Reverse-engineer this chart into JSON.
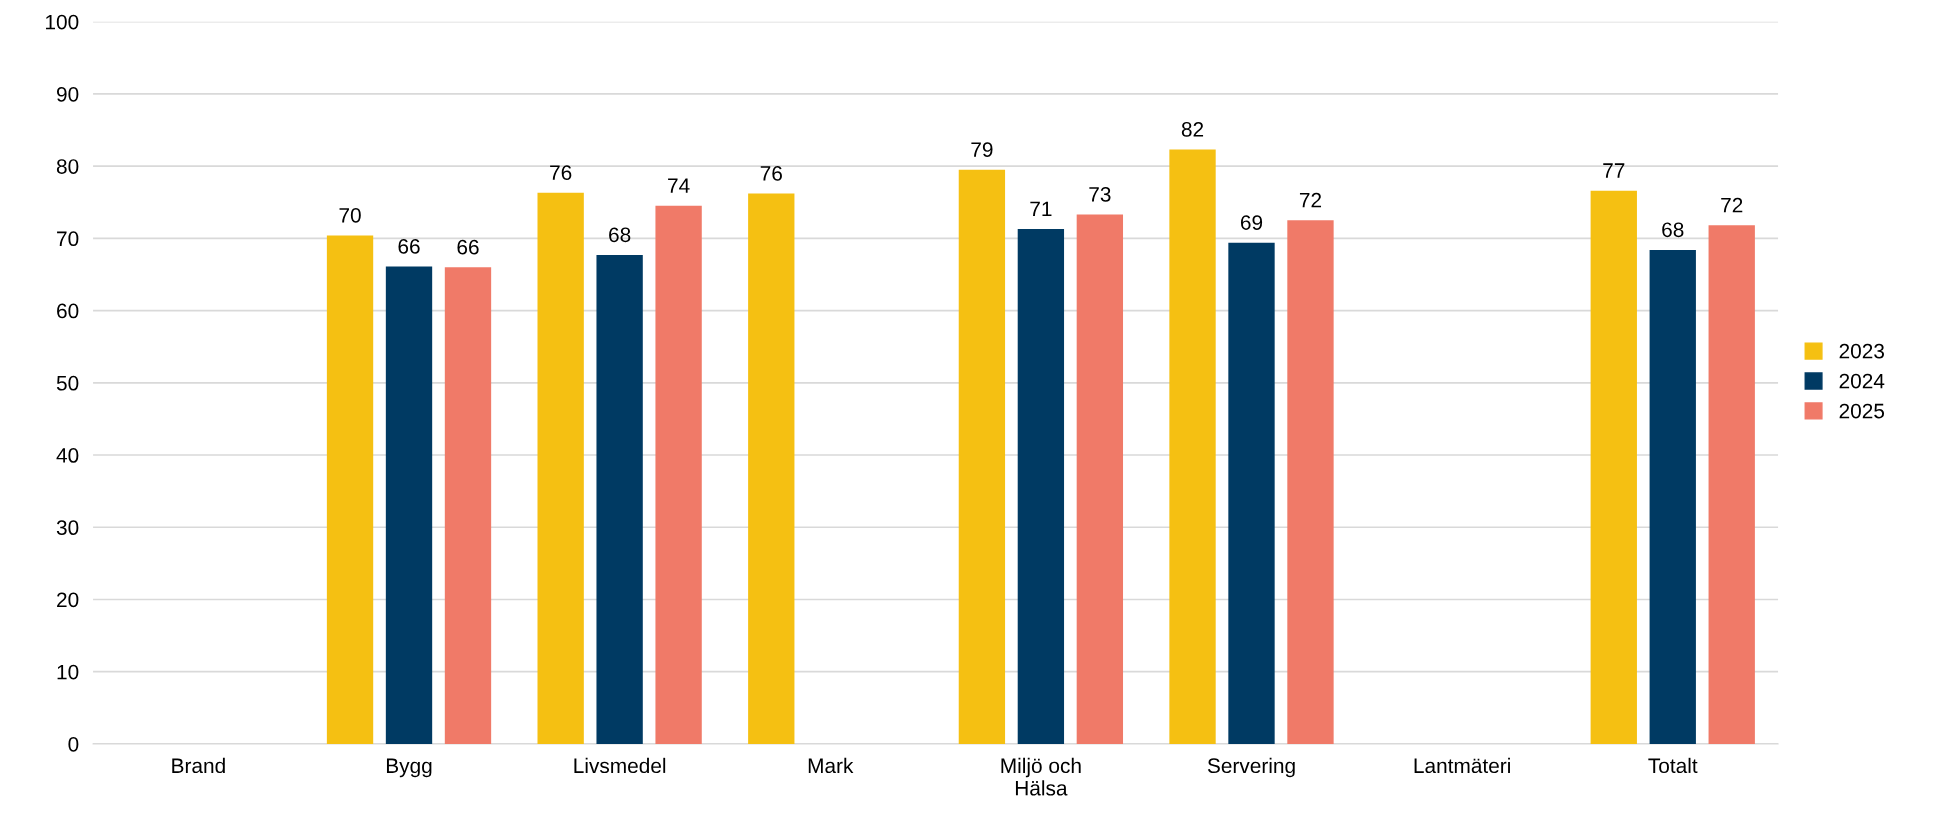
{
  "chart_data": {
    "type": "bar",
    "categories": [
      "Brand",
      "Bygg",
      "Livsmedel",
      "Mark",
      "Miljö och\nHälsa",
      "Servering",
      "Lantmäteri",
      "Totalt"
    ],
    "series": [
      {
        "name": "2023",
        "color": "#f5c012",
        "values": [
          null,
          70.4,
          76.3,
          76.2,
          79.5,
          82.3,
          null,
          76.6
        ],
        "value_labels": [
          null,
          "70",
          "76",
          "76",
          "79",
          "82",
          null,
          "77"
        ]
      },
      {
        "name": "2024",
        "color": "#003a63",
        "values": [
          null,
          66.1,
          67.7,
          null,
          71.3,
          69.4,
          null,
          68.4
        ],
        "value_labels": [
          null,
          "66",
          "68",
          null,
          "71",
          "69",
          null,
          "68"
        ]
      },
      {
        "name": "2025",
        "color": "#f07a68",
        "values": [
          null,
          66.0,
          74.5,
          null,
          73.3,
          72.5,
          null,
          71.8
        ],
        "value_labels": [
          null,
          "66",
          "74",
          null,
          "73",
          "72",
          null,
          "72"
        ]
      }
    ],
    "ylim": [
      0,
      100
    ],
    "yticks": [
      0,
      10,
      20,
      30,
      40,
      50,
      60,
      70,
      80,
      90,
      100
    ],
    "grid": "y",
    "legend": "right"
  }
}
